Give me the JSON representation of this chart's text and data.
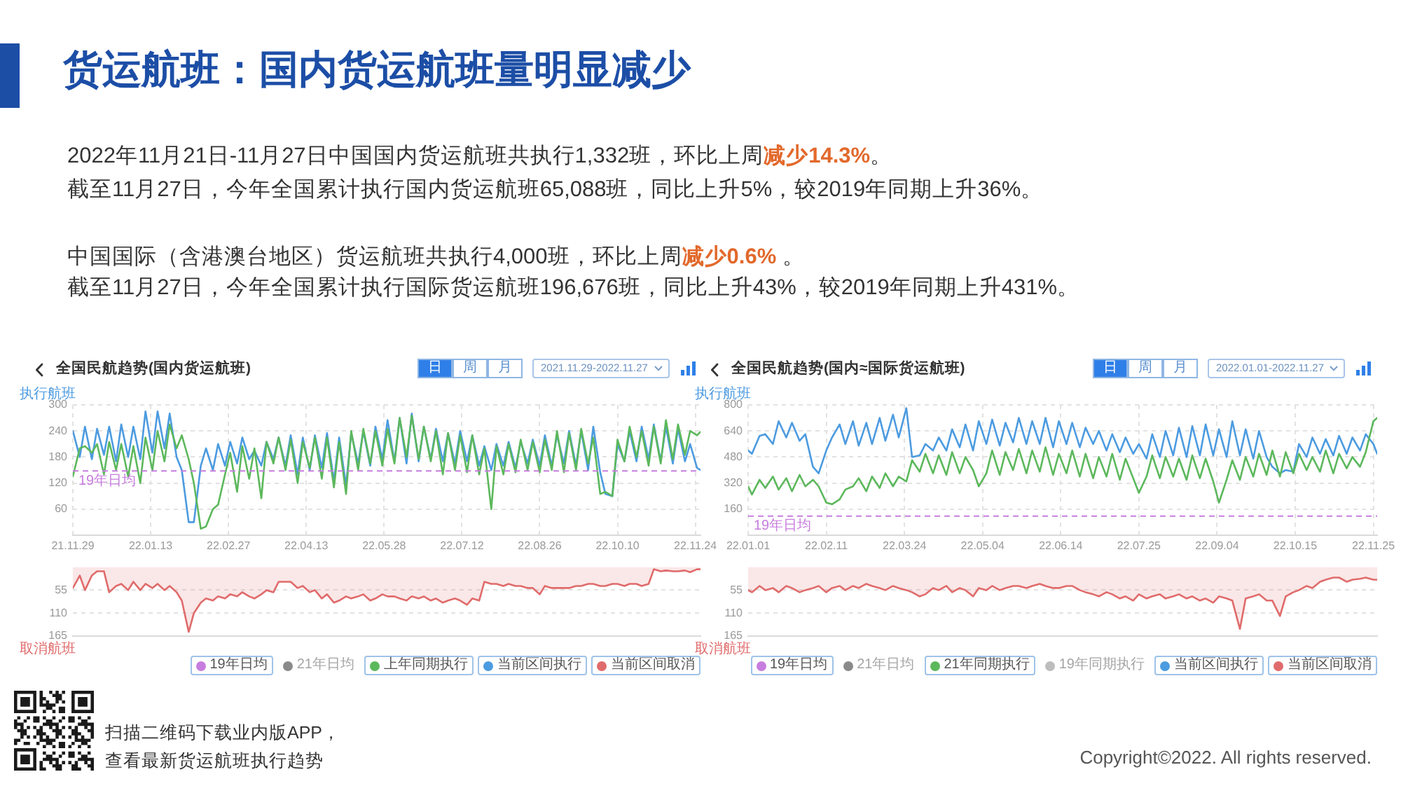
{
  "chart_data": [
    {
      "type": "other",
      "title": "货运航班：国内货运航班量明显减少",
      "annotations": [
        "2022年11月21日-11月27日中国国内货运航班共执行1,332班，环比上周",
        "减少14.3%",
        "。",
        "截至11月27日，今年全国累计执行国内货运航班65,088班，同比上升5%，较2019年同期上升36%。",
        "中国国际（含港澳台地区）货运航班共执行4,000班，环比上周",
        "减少0.6%",
        " 。",
        "截至11月27日，今年全国累计执行国际货运航班196,676班，同比上升43%，较2019年同期上升431%。",
        "扫描二维码下载业内版APP，",
        "查看最新货运航班执行趋势",
        "Copyright©2022. All rights reserved."
      ]
    },
    {
      "type": "line",
      "title": "全国民航趋势(国内货运航班)",
      "annotations": [
        "日",
        "周",
        "月",
        "2021.11.29-2022.11.27"
      ],
      "ylabel": "执行航班",
      "x": [
        "2021-11-29",
        "2021-12-03",
        "2021-12-06",
        "2021-12-10",
        "2021-12-13",
        "2021-12-17",
        "2021-12-20",
        "2021-12-24",
        "2021-12-27",
        "2021-12-31",
        "2022-01-03",
        "2022-01-07",
        "2022-01-10",
        "2022-01-14",
        "2022-01-17",
        "2022-01-21",
        "2022-01-24",
        "2022-01-28",
        "2022-01-31",
        "2022-02-04",
        "2022-02-07",
        "2022-02-11",
        "2022-02-14",
        "2022-02-18",
        "2022-02-21",
        "2022-02-25",
        "2022-02-28",
        "2022-03-04",
        "2022-03-07",
        "2022-03-11",
        "2022-03-14",
        "2022-03-18",
        "2022-03-21",
        "2022-03-25",
        "2022-03-28",
        "2022-04-01",
        "2022-04-04",
        "2022-04-08",
        "2022-04-11",
        "2022-04-15",
        "2022-04-18",
        "2022-04-22",
        "2022-04-25",
        "2022-04-29",
        "2022-05-02",
        "2022-05-06",
        "2022-05-09",
        "2022-05-13",
        "2022-05-16",
        "2022-05-20",
        "2022-05-23",
        "2022-05-27",
        "2022-05-30",
        "2022-06-03",
        "2022-06-06",
        "2022-06-10",
        "2022-06-13",
        "2022-06-17",
        "2022-06-20",
        "2022-06-24",
        "2022-06-27",
        "2022-07-01",
        "2022-07-04",
        "2022-07-08",
        "2022-07-11",
        "2022-07-15",
        "2022-07-18",
        "2022-07-22",
        "2022-07-25",
        "2022-07-29",
        "2022-08-01",
        "2022-08-05",
        "2022-08-08",
        "2022-08-12",
        "2022-08-15",
        "2022-08-19",
        "2022-08-22",
        "2022-08-26",
        "2022-08-29",
        "2022-09-02",
        "2022-09-05",
        "2022-09-09",
        "2022-09-12",
        "2022-09-16",
        "2022-09-19",
        "2022-09-23",
        "2022-09-26",
        "2022-09-30",
        "2022-10-03",
        "2022-10-07",
        "2022-10-10",
        "2022-10-14",
        "2022-10-17",
        "2022-10-21",
        "2022-10-24",
        "2022-10-28",
        "2022-10-31",
        "2022-11-04",
        "2022-11-07",
        "2022-11-11",
        "2022-11-14",
        "2022-11-18",
        "2022-11-21",
        "2022-11-25",
        "2022-11-27"
      ],
      "series": [
        {
          "name": "21年日均",
          "color": "#8a8a8a",
          "values": [
            null,
            null,
            null,
            null,
            null,
            null,
            null,
            null,
            null,
            null,
            null,
            null,
            null,
            null,
            null,
            null,
            null,
            null,
            null,
            null,
            null,
            null,
            null,
            null,
            null,
            null,
            null,
            null,
            null,
            null,
            null,
            null,
            null,
            null,
            null,
            null,
            null,
            null,
            null,
            null,
            null,
            null,
            null,
            null,
            null,
            null,
            null,
            null,
            null,
            null,
            null,
            null,
            null,
            null,
            null,
            null,
            null,
            null,
            null,
            null,
            null,
            null,
            null,
            null,
            null,
            null,
            null,
            null,
            null,
            null,
            null,
            null,
            null,
            null,
            null,
            null,
            null,
            null,
            null,
            null,
            null,
            null,
            null,
            null,
            null,
            null,
            null,
            null,
            null,
            null,
            null,
            null,
            null,
            null,
            null,
            null,
            null,
            null,
            null,
            null,
            null,
            null,
            null,
            null,
            null
          ]
        },
        {
          "name": "上年同期执行",
          "color": "#5cb85c",
          "values": [
            135,
            200,
            205,
            190,
            210,
            140,
            215,
            150,
            210,
            135,
            205,
            120,
            225,
            150,
            240,
            170,
            255,
            200,
            230,
            175,
            120,
            15,
            20,
            60,
            70,
            140,
            190,
            100,
            205,
            130,
            200,
            85,
            215,
            165,
            225,
            150,
            220,
            120,
            215,
            155,
            225,
            130,
            225,
            110,
            215,
            95,
            240,
            150,
            245,
            165,
            240,
            160,
            245,
            165,
            270,
            180,
            275,
            175,
            250,
            170,
            240,
            140,
            235,
            150,
            230,
            145,
            230,
            140,
            200,
            60,
            205,
            140,
            210,
            145,
            220,
            150,
            215,
            145,
            220,
            150,
            240,
            145,
            235,
            150,
            245,
            165,
            225,
            95,
            100,
            90,
            220,
            170,
            250,
            180,
            240,
            160,
            250,
            165,
            265,
            175,
            255,
            185,
            240,
            230,
            238
          ]
        },
        {
          "name": "当前区间执行",
          "color": "#4c9be0",
          "values": [
            240,
            180,
            250,
            175,
            245,
            185,
            250,
            170,
            255,
            180,
            250,
            175,
            285,
            190,
            285,
            200,
            280,
            180,
            150,
            30,
            30,
            160,
            200,
            150,
            210,
            160,
            215,
            165,
            225,
            175,
            195,
            160,
            215,
            175,
            225,
            160,
            230,
            140,
            225,
            150,
            230,
            155,
            235,
            125,
            225,
            115,
            235,
            165,
            240,
            160,
            250,
            175,
            265,
            170,
            270,
            165,
            280,
            170,
            250,
            175,
            245,
            170,
            235,
            165,
            240,
            170,
            230,
            160,
            205,
            150,
            210,
            160,
            215,
            155,
            215,
            165,
            220,
            160,
            230,
            160,
            230,
            165,
            240,
            160,
            240,
            150,
            250,
            145,
            95,
            90,
            210,
            170,
            240,
            170,
            250,
            175,
            255,
            170,
            250,
            165,
            245,
            170,
            210,
            155,
            150
          ]
        }
      ],
      "xlim": [
        "2021-11-29",
        "2022-11-27"
      ],
      "xticks": [
        {
          "value": "2021-11-29",
          "label": "21.11.29"
        },
        {
          "value": "2022-01-13",
          "label": "22.01.13"
        },
        {
          "value": "2022-02-27",
          "label": "22.02.27"
        },
        {
          "value": "2022-04-13",
          "label": "22.04.13"
        },
        {
          "value": "2022-05-28",
          "label": "22.05.28"
        },
        {
          "value": "2022-07-12",
          "label": "22.07.12"
        },
        {
          "value": "2022-08-26",
          "label": "22.08.26"
        },
        {
          "value": "2022-10-10",
          "label": "22.10.10"
        },
        {
          "value": "2022-11-24",
          "label": "22.11.24"
        }
      ],
      "ylim": [
        0,
        300
      ],
      "yticks": [
        60,
        120,
        180,
        240,
        300
      ],
      "ref_lines": [
        {
          "axis": "y",
          "value": 148,
          "label": "19年日均",
          "color": "#c77dde",
          "line_style": "dashed"
        }
      ],
      "grid": true,
      "legend": "bottom",
      "marker": "none"
    },
    {
      "type": "area",
      "ylabel": "取消航班",
      "x": [
        "2021-11-29",
        "2021-12-03",
        "2021-12-06",
        "2021-12-10",
        "2021-12-13",
        "2021-12-17",
        "2021-12-20",
        "2021-12-24",
        "2021-12-27",
        "2021-12-31",
        "2022-01-03",
        "2022-01-07",
        "2022-01-10",
        "2022-01-14",
        "2022-01-17",
        "2022-01-21",
        "2022-01-24",
        "2022-01-28",
        "2022-01-31",
        "2022-02-04",
        "2022-02-07",
        "2022-02-11",
        "2022-02-14",
        "2022-02-18",
        "2022-02-21",
        "2022-02-25",
        "2022-02-28",
        "2022-03-04",
        "2022-03-07",
        "2022-03-11",
        "2022-03-14",
        "2022-03-18",
        "2022-03-21",
        "2022-03-25",
        "2022-03-28",
        "2022-04-01",
        "2022-04-04",
        "2022-04-08",
        "2022-04-11",
        "2022-04-15",
        "2022-04-18",
        "2022-04-22",
        "2022-04-25",
        "2022-04-29",
        "2022-05-02",
        "2022-05-06",
        "2022-05-09",
        "2022-05-13",
        "2022-05-16",
        "2022-05-20",
        "2022-05-23",
        "2022-05-27",
        "2022-05-30",
        "2022-06-03",
        "2022-06-06",
        "2022-06-10",
        "2022-06-13",
        "2022-06-17",
        "2022-06-20",
        "2022-06-24",
        "2022-06-27",
        "2022-07-01",
        "2022-07-04",
        "2022-07-08",
        "2022-07-11",
        "2022-07-15",
        "2022-07-18",
        "2022-07-22",
        "2022-07-25",
        "2022-07-29",
        "2022-08-01",
        "2022-08-05",
        "2022-08-08",
        "2022-08-12",
        "2022-08-15",
        "2022-08-19",
        "2022-08-22",
        "2022-08-26",
        "2022-08-29",
        "2022-09-02",
        "2022-09-05",
        "2022-09-09",
        "2022-09-12",
        "2022-09-16",
        "2022-09-19",
        "2022-09-23",
        "2022-09-26",
        "2022-09-30",
        "2022-10-03",
        "2022-10-07",
        "2022-10-10",
        "2022-10-14",
        "2022-10-17",
        "2022-10-21",
        "2022-10-24",
        "2022-10-28",
        "2022-10-31",
        "2022-11-04",
        "2022-11-07",
        "2022-11-11",
        "2022-11-14",
        "2022-11-18",
        "2022-11-21",
        "2022-11-25",
        "2022-11-27"
      ],
      "series": [
        {
          "name": "当前区间取消",
          "color": "#e06b6b",
          "values": [
            50,
            20,
            55,
            20,
            10,
            10,
            60,
            45,
            40,
            55,
            35,
            55,
            40,
            50,
            40,
            55,
            45,
            60,
            80,
            155,
            110,
            85,
            75,
            80,
            70,
            75,
            65,
            70,
            60,
            70,
            75,
            65,
            55,
            60,
            35,
            35,
            35,
            50,
            45,
            60,
            55,
            75,
            65,
            85,
            80,
            70,
            75,
            70,
            65,
            80,
            75,
            65,
            70,
            70,
            75,
            80,
            70,
            75,
            70,
            80,
            75,
            85,
            80,
            75,
            80,
            90,
            75,
            80,
            35,
            40,
            40,
            45,
            40,
            45,
            45,
            50,
            50,
            65,
            45,
            50,
            50,
            50,
            50,
            45,
            45,
            40,
            40,
            45,
            45,
            40,
            40,
            45,
            40,
            40,
            45,
            40,
            5,
            10,
            8,
            10,
            10,
            8,
            12,
            5,
            5
          ]
        }
      ],
      "xlim": [
        "2021-11-29",
        "2022-11-27"
      ],
      "xticks": [
        {
          "value": "2021-11-29",
          "label": null
        },
        {
          "value": "2022-01-13",
          "label": null
        },
        {
          "value": "2022-02-27",
          "label": null
        },
        {
          "value": "2022-04-13",
          "label": null
        },
        {
          "value": "2022-05-28",
          "label": null
        },
        {
          "value": "2022-07-12",
          "label": null
        },
        {
          "value": "2022-08-26",
          "label": null
        },
        {
          "value": "2022-10-10",
          "label": null
        },
        {
          "value": "2022-11-24",
          "label": null
        }
      ],
      "ylim": [
        165,
        0
      ],
      "yticks": [
        55,
        110,
        165
      ],
      "grid": true,
      "legend": "bottom",
      "marker": "none",
      "tick_labels": "y"
    },
    {
      "type": "line",
      "title": "全国民航趋势(国内≈国际货运航班)",
      "annotations": [
        "日",
        "周",
        "月",
        "2022.01.01-2022.11.27"
      ],
      "ylabel": "执行航班",
      "x": [
        "2022-01-01",
        "2022-01-03",
        "2022-01-07",
        "2022-01-10",
        "2022-01-14",
        "2022-01-17",
        "2022-01-21",
        "2022-01-24",
        "2022-01-28",
        "2022-01-31",
        "2022-02-04",
        "2022-02-07",
        "2022-02-11",
        "2022-02-14",
        "2022-02-18",
        "2022-02-21",
        "2022-02-25",
        "2022-02-28",
        "2022-03-04",
        "2022-03-07",
        "2022-03-11",
        "2022-03-14",
        "2022-03-18",
        "2022-03-21",
        "2022-03-25",
        "2022-03-28",
        "2022-04-01",
        "2022-04-04",
        "2022-04-08",
        "2022-04-11",
        "2022-04-15",
        "2022-04-18",
        "2022-04-22",
        "2022-04-25",
        "2022-04-29",
        "2022-05-02",
        "2022-05-06",
        "2022-05-09",
        "2022-05-13",
        "2022-05-16",
        "2022-05-20",
        "2022-05-23",
        "2022-05-27",
        "2022-05-30",
        "2022-06-03",
        "2022-06-06",
        "2022-06-10",
        "2022-06-13",
        "2022-06-17",
        "2022-06-20",
        "2022-06-24",
        "2022-06-27",
        "2022-07-01",
        "2022-07-04",
        "2022-07-08",
        "2022-07-11",
        "2022-07-15",
        "2022-07-18",
        "2022-07-22",
        "2022-07-25",
        "2022-07-29",
        "2022-08-01",
        "2022-08-05",
        "2022-08-08",
        "2022-08-12",
        "2022-08-15",
        "2022-08-19",
        "2022-08-22",
        "2022-08-26",
        "2022-08-29",
        "2022-09-02",
        "2022-09-05",
        "2022-09-09",
        "2022-09-12",
        "2022-09-16",
        "2022-09-19",
        "2022-09-23",
        "2022-09-26",
        "2022-09-30",
        "2022-10-03",
        "2022-10-07",
        "2022-10-10",
        "2022-10-14",
        "2022-10-17",
        "2022-10-21",
        "2022-10-24",
        "2022-10-28",
        "2022-10-31",
        "2022-11-04",
        "2022-11-07",
        "2022-11-11",
        "2022-11-14",
        "2022-11-18",
        "2022-11-21",
        "2022-11-25",
        "2022-11-27"
      ],
      "series": [
        {
          "name": "21年日均",
          "color": "#8a8a8a",
          "values": [
            null,
            null,
            null,
            null,
            null,
            null,
            null,
            null,
            null,
            null,
            null,
            null,
            null,
            null,
            null,
            null,
            null,
            null,
            null,
            null,
            null,
            null,
            null,
            null,
            null,
            null,
            null,
            null,
            null,
            null,
            null,
            null,
            null,
            null,
            null,
            null,
            null,
            null,
            null,
            null,
            null,
            null,
            null,
            null,
            null,
            null,
            null,
            null,
            null,
            null,
            null,
            null,
            null,
            null,
            null,
            null,
            null,
            null,
            null,
            null,
            null,
            null,
            null,
            null,
            null,
            null,
            null,
            null,
            null,
            null,
            null,
            null,
            null,
            null,
            null,
            null,
            null,
            null,
            null,
            null,
            null,
            null,
            null,
            null,
            null,
            null,
            null,
            null,
            null,
            null,
            null,
            null,
            null,
            null,
            null,
            null
          ]
        },
        {
          "name": "21年同期执行",
          "color": "#5cb85c",
          "values": [
            300,
            250,
            340,
            290,
            360,
            280,
            350,
            270,
            370,
            300,
            340,
            300,
            200,
            190,
            220,
            280,
            300,
            350,
            270,
            360,
            290,
            380,
            300,
            360,
            330,
            460,
            390,
            500,
            380,
            490,
            370,
            510,
            380,
            480,
            400,
            300,
            380,
            520,
            370,
            510,
            400,
            530,
            380,
            520,
            390,
            540,
            370,
            500,
            380,
            520,
            360,
            500,
            350,
            480,
            360,
            500,
            340,
            470,
            350,
            260,
            360,
            490,
            350,
            480,
            360,
            470,
            340,
            490,
            350,
            470,
            330,
            200,
            340,
            460,
            340,
            480,
            360,
            500,
            370,
            520,
            360,
            510,
            380,
            500,
            400,
            480,
            390,
            520,
            380,
            500,
            410,
            480,
            420,
            510,
            700,
            720
          ]
        },
        {
          "name": "19年同期执行",
          "color": "#bdbdbd",
          "values": [
            null,
            null,
            null,
            null,
            null,
            null,
            null,
            null,
            null,
            null,
            null,
            null,
            null,
            null,
            null,
            null,
            null,
            null,
            null,
            null,
            null,
            null,
            null,
            null,
            null,
            null,
            null,
            null,
            null,
            null,
            null,
            null,
            null,
            null,
            null,
            null,
            null,
            null,
            null,
            null,
            null,
            null,
            null,
            null,
            null,
            null,
            null,
            null,
            null,
            null,
            null,
            null,
            null,
            null,
            null,
            null,
            null,
            null,
            null,
            null,
            null,
            null,
            null,
            null,
            null,
            null,
            null,
            null,
            null,
            null,
            null,
            null,
            null,
            null,
            null,
            null,
            null,
            null,
            null,
            null,
            null,
            null,
            null,
            null,
            null,
            null,
            null,
            null,
            null,
            null,
            null,
            null,
            null,
            null,
            null,
            null
          ]
        },
        {
          "name": "当前区间执行",
          "color": "#4c9be0",
          "values": [
            520,
            500,
            610,
            620,
            560,
            700,
            600,
            690,
            580,
            620,
            420,
            380,
            520,
            600,
            680,
            560,
            700,
            550,
            690,
            560,
            720,
            580,
            740,
            600,
            780,
            480,
            490,
            560,
            520,
            600,
            520,
            650,
            540,
            680,
            520,
            700,
            560,
            710,
            550,
            690,
            570,
            720,
            560,
            700,
            560,
            720,
            540,
            700,
            560,
            690,
            540,
            660,
            560,
            640,
            520,
            620,
            510,
            600,
            500,
            560,
            470,
            620,
            480,
            640,
            490,
            660,
            480,
            670,
            490,
            680,
            490,
            650,
            480,
            700,
            490,
            650,
            470,
            640,
            480,
            420,
            380,
            400,
            390,
            560,
            480,
            600,
            500,
            590,
            490,
            610,
            500,
            600,
            520,
            620,
            560,
            500
          ]
        }
      ],
      "xlim": [
        "2022-01-01",
        "2022-11-27"
      ],
      "xticks": [
        {
          "value": "2022-01-01",
          "label": "22.01.01"
        },
        {
          "value": "2022-02-11",
          "label": "22.02.11"
        },
        {
          "value": "2022-03-24",
          "label": "22.03.24"
        },
        {
          "value": "2022-05-04",
          "label": "22.05.04"
        },
        {
          "value": "2022-06-14",
          "label": "22.06.14"
        },
        {
          "value": "2022-07-25",
          "label": "22.07.25"
        },
        {
          "value": "2022-09-04",
          "label": "22.09.04"
        },
        {
          "value": "2022-10-15",
          "label": "22.10.15"
        },
        {
          "value": "2022-11-25",
          "label": "22.11.25"
        }
      ],
      "ylim": [
        0,
        800
      ],
      "yticks": [
        160,
        320,
        480,
        640,
        800
      ],
      "ref_lines": [
        {
          "axis": "y",
          "value": 117,
          "label": "19年日均",
          "color": "#c77dde",
          "line_style": "dashed"
        }
      ],
      "grid": true,
      "legend": "bottom",
      "marker": "none"
    },
    {
      "type": "area",
      "ylabel": "取消航班",
      "x": [
        "2022-01-01",
        "2022-01-03",
        "2022-01-07",
        "2022-01-10",
        "2022-01-14",
        "2022-01-17",
        "2022-01-21",
        "2022-01-24",
        "2022-01-28",
        "2022-01-31",
        "2022-02-04",
        "2022-02-07",
        "2022-02-11",
        "2022-02-14",
        "2022-02-18",
        "2022-02-21",
        "2022-02-25",
        "2022-02-28",
        "2022-03-04",
        "2022-03-07",
        "2022-03-11",
        "2022-03-14",
        "2022-03-18",
        "2022-03-21",
        "2022-03-25",
        "2022-03-28",
        "2022-04-01",
        "2022-04-04",
        "2022-04-08",
        "2022-04-11",
        "2022-04-15",
        "2022-04-18",
        "2022-04-22",
        "2022-04-25",
        "2022-04-29",
        "2022-05-02",
        "2022-05-06",
        "2022-05-09",
        "2022-05-13",
        "2022-05-16",
        "2022-05-20",
        "2022-05-23",
        "2022-05-27",
        "2022-05-30",
        "2022-06-03",
        "2022-06-06",
        "2022-06-10",
        "2022-06-13",
        "2022-06-17",
        "2022-06-20",
        "2022-06-24",
        "2022-06-27",
        "2022-07-01",
        "2022-07-04",
        "2022-07-08",
        "2022-07-11",
        "2022-07-15",
        "2022-07-18",
        "2022-07-22",
        "2022-07-25",
        "2022-07-29",
        "2022-08-01",
        "2022-08-05",
        "2022-08-08",
        "2022-08-12",
        "2022-08-15",
        "2022-08-19",
        "2022-08-22",
        "2022-08-26",
        "2022-08-29",
        "2022-09-02",
        "2022-09-05",
        "2022-09-09",
        "2022-09-12",
        "2022-09-16",
        "2022-09-19",
        "2022-09-23",
        "2022-09-26",
        "2022-09-30",
        "2022-10-03",
        "2022-10-07",
        "2022-10-10",
        "2022-10-14",
        "2022-10-17",
        "2022-10-21",
        "2022-10-24",
        "2022-10-28",
        "2022-10-31",
        "2022-11-04",
        "2022-11-07",
        "2022-11-11",
        "2022-11-14",
        "2022-11-18",
        "2022-11-21",
        "2022-11-25",
        "2022-11-27"
      ],
      "series": [
        {
          "name": "当前区间取消",
          "color": "#e06b6b",
          "values": [
            55,
            60,
            45,
            55,
            50,
            60,
            45,
            50,
            60,
            55,
            50,
            45,
            60,
            50,
            45,
            55,
            45,
            50,
            40,
            45,
            50,
            55,
            45,
            50,
            55,
            60,
            70,
            65,
            50,
            55,
            45,
            60,
            50,
            55,
            70,
            50,
            55,
            45,
            55,
            50,
            45,
            45,
            50,
            45,
            40,
            45,
            50,
            50,
            45,
            45,
            55,
            60,
            65,
            70,
            60,
            65,
            75,
            70,
            80,
            65,
            75,
            70,
            65,
            75,
            70,
            65,
            75,
            70,
            80,
            75,
            85,
            70,
            75,
            80,
            148,
            75,
            70,
            65,
            80,
            80,
            117,
            70,
            60,
            55,
            45,
            50,
            35,
            30,
            25,
            25,
            35,
            30,
            28,
            25,
            30,
            30
          ]
        }
      ],
      "xlim": [
        "2022-01-01",
        "2022-11-27"
      ],
      "xticks": [
        {
          "value": "2022-01-01",
          "label": null
        },
        {
          "value": "2022-02-11",
          "label": null
        },
        {
          "value": "2022-03-24",
          "label": null
        },
        {
          "value": "2022-05-04",
          "label": null
        },
        {
          "value": "2022-06-14",
          "label": null
        },
        {
          "value": "2022-07-25",
          "label": null
        },
        {
          "value": "2022-09-04",
          "label": null
        },
        {
          "value": "2022-10-15",
          "label": null
        },
        {
          "value": "2022-11-25",
          "label": null
        }
      ],
      "ylim": [
        165,
        0
      ],
      "yticks": [
        55,
        110,
        165
      ],
      "grid": true,
      "legend": "bottom",
      "marker": "none",
      "tick_labels": "y"
    }
  ]
}
